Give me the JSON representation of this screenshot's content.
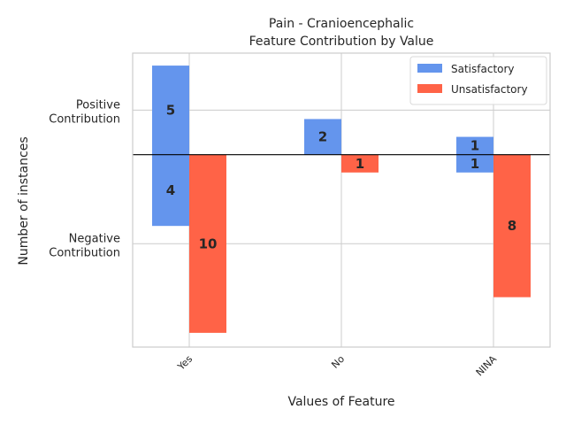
{
  "chart_data": {
    "type": "bar",
    "title_lines": [
      "Pain - Cranioencephalic",
      "Feature Contribution by Value"
    ],
    "xlabel": "Values of Feature",
    "ylabel": "Number of instances",
    "categories": [
      "Yes",
      "No",
      "NINA"
    ],
    "series": [
      {
        "name": "Satisfactory",
        "color": "#6495ed",
        "positive": [
          5,
          2,
          1
        ],
        "negative": [
          4,
          0,
          1
        ]
      },
      {
        "name": "Unsatisfactory",
        "color": "#ff6347",
        "positive": [
          0,
          0,
          0
        ],
        "negative": [
          10,
          1,
          8
        ]
      }
    ],
    "yticks": [
      {
        "value": 2.5,
        "lines": [
          "Positive",
          "Contribution"
        ]
      },
      {
        "value": -5,
        "lines": [
          "Negative",
          "Contribution"
        ]
      }
    ],
    "ylim": [
      -10.8,
      5.7
    ],
    "grid": true,
    "legend_position": "top-right"
  }
}
